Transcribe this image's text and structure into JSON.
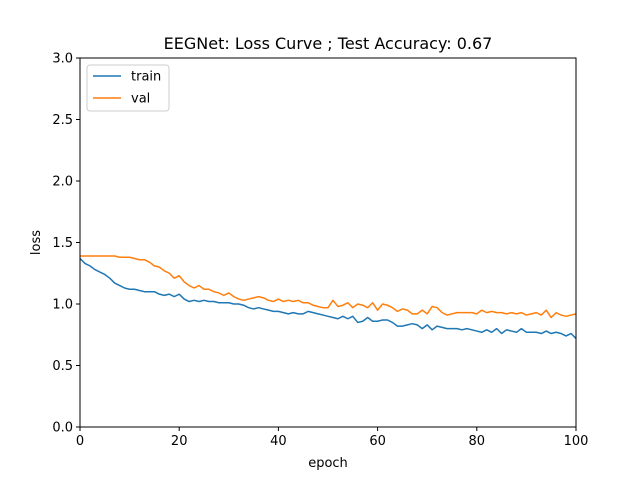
{
  "chart_data": {
    "type": "line",
    "title": "EEGNet: Loss Curve ; Test Accuracy: 0.67",
    "xlabel": "epoch",
    "ylabel": "loss",
    "xlim": [
      0,
      100
    ],
    "ylim": [
      0.0,
      3.0
    ],
    "xticks": [
      "0",
      "20",
      "40",
      "60",
      "80",
      "100"
    ],
    "yticks": [
      "0.0",
      "0.5",
      "1.0",
      "1.5",
      "2.0",
      "2.5",
      "3.0"
    ],
    "grid": false,
    "legend": "top-left",
    "series": [
      {
        "name": "train",
        "color": "#1f77b4",
        "values": [
          1.37,
          1.33,
          1.31,
          1.28,
          1.26,
          1.24,
          1.21,
          1.17,
          1.15,
          1.13,
          1.12,
          1.12,
          1.11,
          1.1,
          1.1,
          1.1,
          1.08,
          1.07,
          1.08,
          1.06,
          1.08,
          1.04,
          1.02,
          1.03,
          1.02,
          1.03,
          1.02,
          1.02,
          1.01,
          1.01,
          1.01,
          1.0,
          1.0,
          0.99,
          0.97,
          0.96,
          0.97,
          0.96,
          0.95,
          0.94,
          0.94,
          0.93,
          0.92,
          0.93,
          0.92,
          0.92,
          0.94,
          0.93,
          0.92,
          0.91,
          0.9,
          0.89,
          0.88,
          0.9,
          0.88,
          0.9,
          0.85,
          0.86,
          0.89,
          0.86,
          0.86,
          0.87,
          0.87,
          0.85,
          0.82,
          0.82,
          0.83,
          0.84,
          0.83,
          0.8,
          0.83,
          0.79,
          0.82,
          0.81,
          0.8,
          0.8,
          0.8,
          0.79,
          0.8,
          0.79,
          0.78,
          0.77,
          0.79,
          0.77,
          0.8,
          0.76,
          0.79,
          0.78,
          0.77,
          0.8,
          0.77,
          0.77,
          0.77,
          0.76,
          0.78,
          0.76,
          0.77,
          0.76,
          0.74,
          0.76,
          0.72
        ]
      },
      {
        "name": "val",
        "color": "#ff7f0e",
        "values": [
          1.39,
          1.39,
          1.39,
          1.39,
          1.39,
          1.39,
          1.39,
          1.39,
          1.38,
          1.38,
          1.38,
          1.37,
          1.36,
          1.36,
          1.34,
          1.31,
          1.3,
          1.27,
          1.25,
          1.21,
          1.23,
          1.18,
          1.15,
          1.13,
          1.15,
          1.12,
          1.12,
          1.1,
          1.09,
          1.07,
          1.09,
          1.06,
          1.04,
          1.03,
          1.04,
          1.05,
          1.06,
          1.05,
          1.03,
          1.02,
          1.04,
          1.02,
          1.03,
          1.02,
          1.03,
          1.01,
          1.01,
          0.99,
          0.98,
          0.97,
          0.97,
          1.03,
          0.98,
          0.99,
          1.01,
          0.97,
          1.0,
          0.99,
          0.97,
          1.01,
          0.95,
          1.0,
          0.99,
          0.97,
          0.94,
          0.96,
          0.95,
          0.92,
          0.92,
          0.95,
          0.92,
          0.98,
          0.97,
          0.93,
          0.91,
          0.92,
          0.93,
          0.93,
          0.93,
          0.93,
          0.92,
          0.95,
          0.93,
          0.94,
          0.93,
          0.93,
          0.92,
          0.93,
          0.92,
          0.93,
          0.91,
          0.92,
          0.93,
          0.91,
          0.95,
          0.89,
          0.93,
          0.91,
          0.9,
          0.91,
          0.92
        ]
      }
    ]
  }
}
